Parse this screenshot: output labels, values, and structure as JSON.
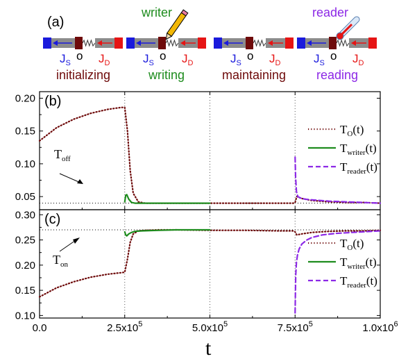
{
  "colors": {
    "source": "#1a1adc",
    "drain": "#e61414",
    "dot": "#6e0a0a",
    "writer": "#1e8c1e",
    "reader": "#8c28e6",
    "gray": "#8c8c8c"
  },
  "icons": {
    "writer_icon": "pencil-icon",
    "reader_icon": "thermometer-icon"
  },
  "panel_a": {
    "label": "(a)",
    "junction": {
      "js_main": "J",
      "js_sub": "S",
      "o": "o",
      "jd_main": "J",
      "jd_sub": "D"
    },
    "stages": [
      {
        "name": "initializing",
        "color": "#6e0a0a",
        "probe": ""
      },
      {
        "name": "writing",
        "color": "#1e8c1e",
        "probe": "writer"
      },
      {
        "name": "maintaining",
        "color": "#6e0a0a",
        "probe": ""
      },
      {
        "name": "reading",
        "color": "#8c28e6",
        "probe": "reader"
      }
    ]
  },
  "panel_b": {
    "label": "(b)",
    "annotation_main": "T",
    "annotation_sub": "off"
  },
  "panel_c": {
    "label": "(c)",
    "annotation_main": "T",
    "annotation_sub": "on"
  },
  "legend": [
    {
      "main": "T",
      "sub": "O",
      "suffix": "(t)",
      "style": "dotted",
      "color": "#6e0a0a"
    },
    {
      "main": "T",
      "sub": "writer",
      "suffix": "(t)",
      "style": "solid",
      "color": "#1e8c1e"
    },
    {
      "main": "T",
      "sub": "reader",
      "suffix": "(t)",
      "style": "dashed",
      "color": "#8c28e6"
    }
  ],
  "x_tick_labels": [
    "0.0",
    "2.5x10",
    "5.0x10",
    "7.5x10",
    "1.0x10"
  ],
  "x_tick_exp": "5",
  "x_tick_exp_last": "6",
  "xlabel": "t",
  "chart_data": [
    {
      "type": "line",
      "panel": "b",
      "xlabel": "t",
      "xlim": [
        0,
        1000000
      ],
      "ylim": [
        0.03,
        0.21
      ],
      "yticks": [
        0.05,
        0.1,
        0.15,
        0.2
      ],
      "ytick_labels": [
        "0.05",
        "0.10",
        "0.15",
        "0.20"
      ],
      "xticks": [
        0,
        250000,
        500000,
        750000,
        1000000
      ],
      "reference_line": {
        "name": "T_off",
        "y": 0.04
      },
      "vertical_lines": [
        250000,
        500000,
        750000
      ],
      "legend_position": "right",
      "series": [
        {
          "name": "T_O(t)",
          "style": "dotted",
          "color": "#6e0a0a",
          "x": [
            0,
            50000,
            100000,
            150000,
            200000,
            240000,
            250000,
            258000,
            266000,
            275000,
            290000,
            310000,
            350000,
            400000,
            500000,
            600000,
            700000,
            745000,
            750000,
            755000,
            770000,
            800000,
            850000,
            900000,
            950000,
            1000000
          ],
          "y": [
            0.135,
            0.155,
            0.168,
            0.177,
            0.183,
            0.186,
            0.186,
            0.15,
            0.09,
            0.055,
            0.042,
            0.04,
            0.04,
            0.04,
            0.04,
            0.04,
            0.04,
            0.04,
            0.041,
            0.05,
            0.047,
            0.044,
            0.042,
            0.041,
            0.041,
            0.04
          ]
        },
        {
          "name": "T_writer(t)",
          "style": "solid",
          "color": "#1e8c1e",
          "x": [
            250000,
            253000,
            256000,
            262000,
            270000,
            280000,
            300000,
            350000,
            400000,
            450000,
            500000
          ],
          "y": [
            0.042,
            0.052,
            0.053,
            0.046,
            0.041,
            0.04,
            0.04,
            0.04,
            0.04,
            0.04,
            0.04
          ]
        },
        {
          "name": "T_reader(t)",
          "style": "dashed",
          "color": "#8c28e6",
          "x": [
            750000,
            751500,
            754000,
            758000,
            765000,
            780000,
            800000,
            850000,
            900000,
            950000,
            1000000
          ],
          "y": [
            0.11,
            0.08,
            0.058,
            0.05,
            0.048,
            0.046,
            0.045,
            0.043,
            0.042,
            0.041,
            0.04
          ]
        }
      ]
    },
    {
      "type": "line",
      "panel": "c",
      "xlabel": "t",
      "xlim": [
        0,
        1000000
      ],
      "ylim": [
        0.095,
        0.31
      ],
      "yticks": [
        0.1,
        0.15,
        0.2,
        0.25,
        0.3
      ],
      "ytick_labels": [
        "0.10",
        "0.15",
        "0.20",
        "0.25",
        "0.30"
      ],
      "xticks": [
        0,
        250000,
        500000,
        750000,
        1000000
      ],
      "reference_line": {
        "name": "T_on",
        "y": 0.27
      },
      "vertical_lines": [
        250000,
        500000,
        750000
      ],
      "legend_position": "right",
      "series": [
        {
          "name": "T_O(t)",
          "style": "dotted",
          "color": "#6e0a0a",
          "x": [
            0,
            50000,
            100000,
            150000,
            200000,
            240000,
            250000,
            258000,
            266000,
            275000,
            290000,
            310000,
            350000,
            400000,
            500000,
            600000,
            700000,
            745000,
            750000,
            755000,
            770000,
            800000,
            850000,
            900000,
            950000,
            1000000
          ],
          "y": [
            0.137,
            0.155,
            0.167,
            0.176,
            0.182,
            0.185,
            0.186,
            0.212,
            0.245,
            0.262,
            0.268,
            0.269,
            0.27,
            0.27,
            0.269,
            0.269,
            0.268,
            0.268,
            0.266,
            0.26,
            0.262,
            0.265,
            0.267,
            0.268,
            0.268,
            0.269
          ]
        },
        {
          "name": "T_writer(t)",
          "style": "solid",
          "color": "#1e8c1e",
          "x": [
            250000,
            253000,
            256000,
            262000,
            270000,
            280000,
            300000,
            350000,
            400000,
            450000,
            500000
          ],
          "y": [
            0.266,
            0.26,
            0.258,
            0.262,
            0.265,
            0.267,
            0.268,
            0.269,
            0.27,
            0.27,
            0.27
          ]
        },
        {
          "name": "T_reader(t)",
          "style": "dashed",
          "color": "#8c28e6",
          "x": [
            750000,
            751000,
            752000,
            754000,
            757000,
            762000,
            770000,
            785000,
            800000,
            830000,
            870000,
            920000,
            1000000
          ],
          "y": [
            0.105,
            0.14,
            0.18,
            0.205,
            0.22,
            0.232,
            0.242,
            0.25,
            0.255,
            0.26,
            0.263,
            0.265,
            0.268
          ]
        }
      ]
    }
  ]
}
